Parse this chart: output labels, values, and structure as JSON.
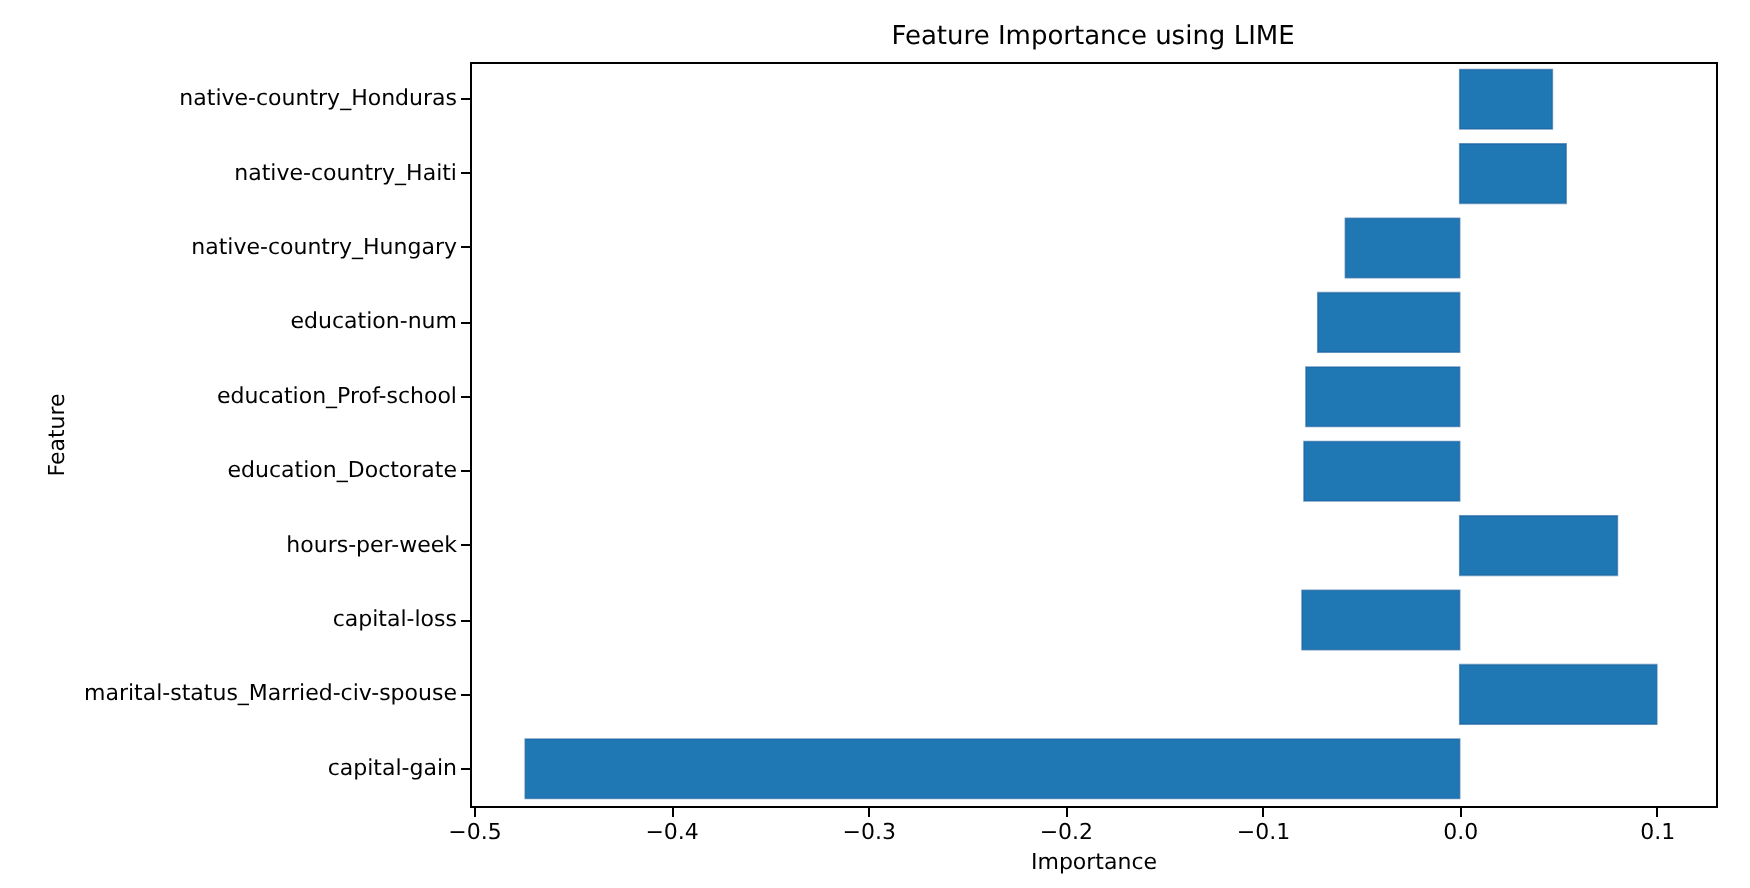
{
  "chart_data": {
    "type": "bar",
    "orientation": "horizontal",
    "title": "Feature Importance using LIME",
    "xlabel": "Importance",
    "ylabel": "Feature",
    "categories": [
      "native-country_Honduras",
      "native-country_Haiti",
      "native-country_Hungary",
      "education-num",
      "education_Prof-school",
      "education_Doctorate",
      "hours-per-week",
      "capital-loss",
      "marital-status_Married-civ-spouse",
      "capital-gain"
    ],
    "values": [
      0.047,
      0.054,
      -0.058,
      -0.072,
      -0.078,
      -0.079,
      0.08,
      -0.08,
      0.1,
      -0.474
    ],
    "color": "#1f77b4",
    "xlim": [
      -0.502,
      0.13
    ],
    "xticks": [
      {
        "value": -0.5,
        "label": "−0.5"
      },
      {
        "value": -0.4,
        "label": "−0.4"
      },
      {
        "value": -0.3,
        "label": "−0.3"
      },
      {
        "value": -0.2,
        "label": "−0.2"
      },
      {
        "value": -0.1,
        "label": "−0.1"
      },
      {
        "value": 0,
        "label": "0.0"
      },
      {
        "value": 0.1,
        "label": "0.1"
      }
    ],
    "grid": false
  }
}
